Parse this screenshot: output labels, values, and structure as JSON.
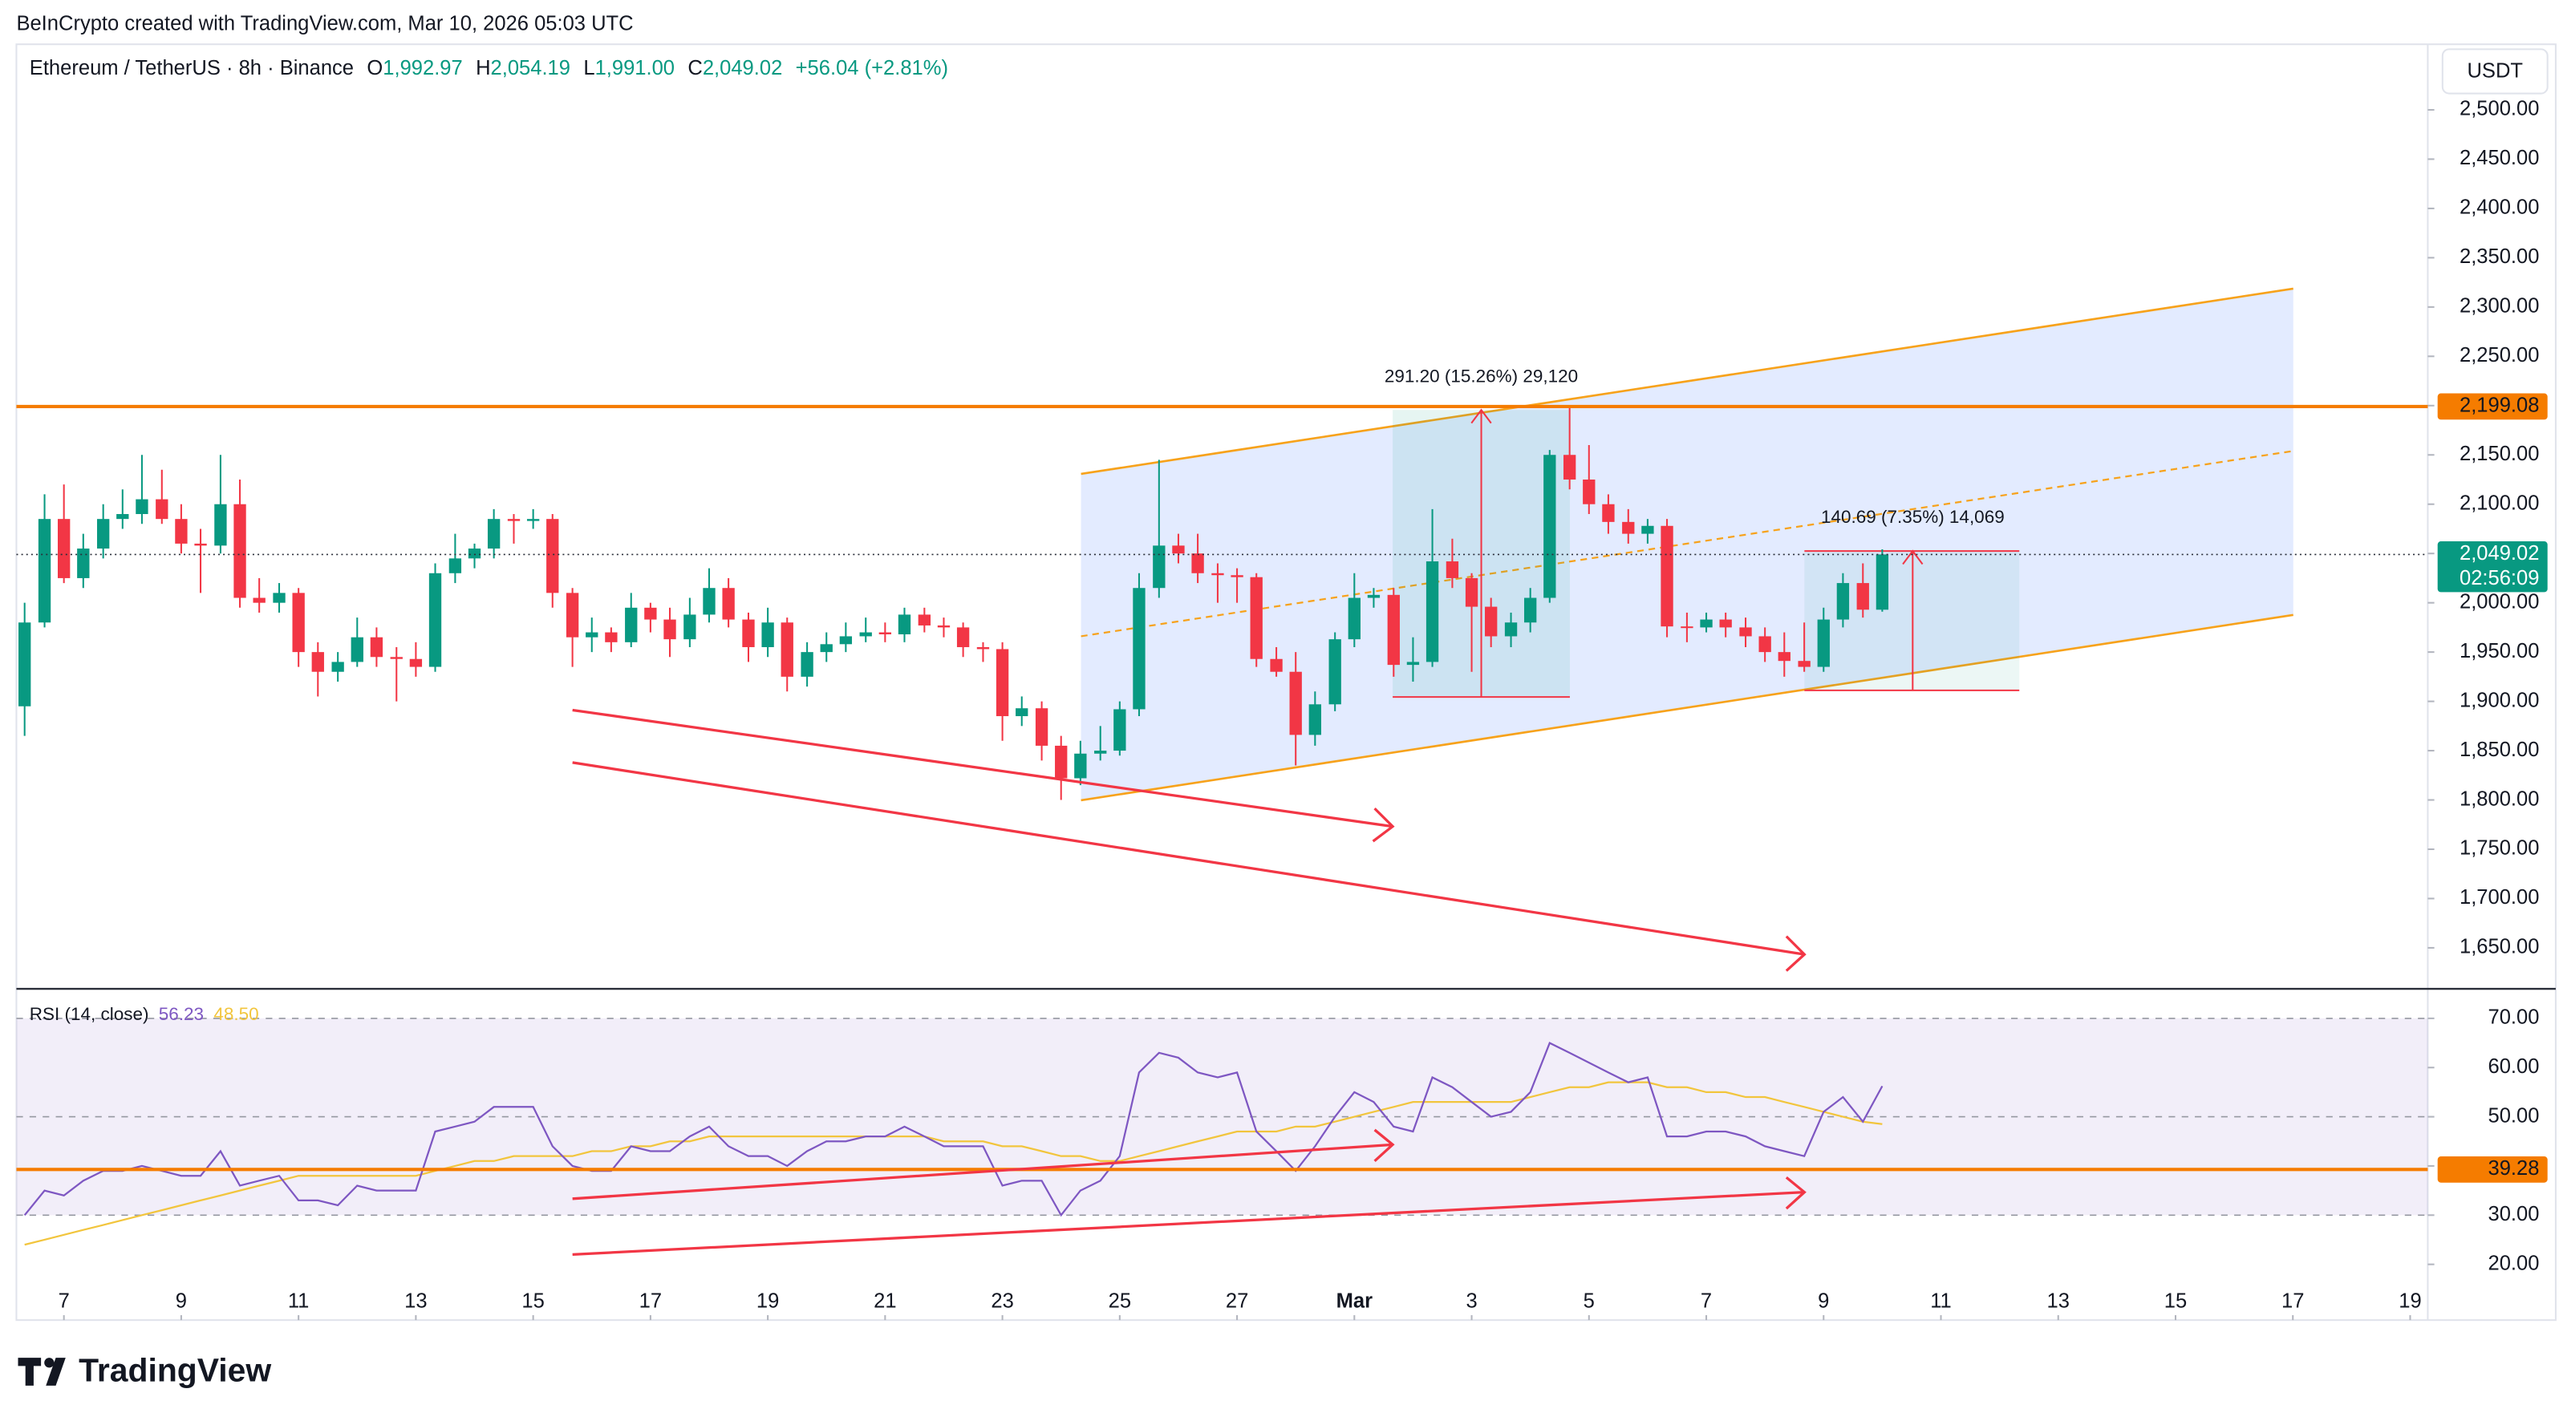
{
  "header": {
    "attribution": "BeInCrypto created with TradingView.com, Mar 10, 2026 05:03 UTC",
    "brand": "TradingView"
  },
  "chart_data": {
    "type": "candlestick",
    "title": "Ethereum / TetherUS · 8h · Binance",
    "ohlc_legend": [
      {
        "key": "O",
        "value": "1,992.97"
      },
      {
        "key": "H",
        "value": "2,054.19"
      },
      {
        "key": "L",
        "value": "1,991.00"
      },
      {
        "key": "C",
        "value": "2,049.02"
      }
    ],
    "change": "+56.04 (+2.81%)",
    "currency": "USDT",
    "up_color": "#089981",
    "down_color": "#f23645",
    "x": [
      6.33,
      6.67,
      7,
      7.33,
      7.67,
      8,
      8.33,
      8.67,
      9,
      9.33,
      9.67,
      10,
      10.33,
      10.67,
      11,
      11.33,
      11.67,
      12,
      12.33,
      12.67,
      13,
      13.33,
      13.67,
      14,
      14.33,
      14.67,
      15,
      15.33,
      15.67,
      16,
      16.33,
      16.67,
      17,
      17.33,
      17.67,
      18,
      18.33,
      18.67,
      19,
      19.33,
      19.67,
      20,
      20.33,
      20.67,
      21,
      21.33,
      21.67,
      22,
      22.33,
      22.67,
      23,
      23.33,
      23.67,
      24,
      24.33,
      24.67,
      25,
      25.33,
      25.67,
      26,
      26.33,
      26.67,
      27,
      27.33,
      27.67,
      28,
      28.33,
      28.67,
      29,
      29.33,
      29.67,
      30,
      30.33,
      30.67,
      31,
      31.33,
      31.67,
      32,
      32.33,
      32.67,
      33,
      33.33,
      33.67,
      34,
      34.33,
      34.67,
      35,
      35.33,
      35.67,
      36,
      36.33,
      36.67,
      37,
      37.33,
      37.67,
      38
    ],
    "candles": [
      [
        1895,
        2000,
        1865,
        1980
      ],
      [
        1980,
        2110,
        1975,
        2085
      ],
      [
        2085,
        2120,
        2020,
        2025
      ],
      [
        2025,
        2070,
        2015,
        2055
      ],
      [
        2055,
        2100,
        2045,
        2085
      ],
      [
        2085,
        2115,
        2075,
        2090
      ],
      [
        2090,
        2150,
        2080,
        2105
      ],
      [
        2105,
        2135,
        2080,
        2085
      ],
      [
        2085,
        2100,
        2050,
        2060
      ],
      [
        2060,
        2075,
        2010,
        2058
      ],
      [
        2058,
        2150,
        2050,
        2100
      ],
      [
        2100,
        2125,
        1995,
        2005
      ],
      [
        2005,
        2025,
        1990,
        2000
      ],
      [
        2000,
        2020,
        1990,
        2010
      ],
      [
        2010,
        2015,
        1935,
        1950
      ],
      [
        1950,
        1960,
        1905,
        1930
      ],
      [
        1930,
        1950,
        1920,
        1940
      ],
      [
        1940,
        1985,
        1935,
        1965
      ],
      [
        1965,
        1975,
        1935,
        1945
      ],
      [
        1945,
        1955,
        1900,
        1943
      ],
      [
        1943,
        1960,
        1925,
        1935
      ],
      [
        1935,
        2040,
        1930,
        2030
      ],
      [
        2030,
        2070,
        2020,
        2045
      ],
      [
        2045,
        2060,
        2035,
        2055
      ],
      [
        2055,
        2095,
        2045,
        2085
      ],
      [
        2085,
        2090,
        2060,
        2083
      ],
      [
        2083,
        2095,
        2075,
        2085
      ],
      [
        2085,
        2090,
        1995,
        2010
      ],
      [
        2010,
        2015,
        1935,
        1965
      ],
      [
        1965,
        1985,
        1950,
        1970
      ],
      [
        1970,
        1975,
        1950,
        1960
      ],
      [
        1960,
        2010,
        1955,
        1995
      ],
      [
        1995,
        2000,
        1970,
        1983
      ],
      [
        1983,
        1995,
        1945,
        1963
      ],
      [
        1963,
        2005,
        1955,
        1988
      ],
      [
        1988,
        2035,
        1980,
        2015
      ],
      [
        2015,
        2025,
        1975,
        1983
      ],
      [
        1983,
        1990,
        1940,
        1955
      ],
      [
        1955,
        1995,
        1945,
        1980
      ],
      [
        1980,
        1985,
        1910,
        1925
      ],
      [
        1925,
        1960,
        1915,
        1950
      ],
      [
        1950,
        1970,
        1940,
        1958
      ],
      [
        1958,
        1980,
        1950,
        1966
      ],
      [
        1966,
        1985,
        1960,
        1970
      ],
      [
        1970,
        1980,
        1960,
        1968
      ],
      [
        1968,
        1995,
        1960,
        1988
      ],
      [
        1988,
        1995,
        1970,
        1977
      ],
      [
        1977,
        1985,
        1965,
        1975
      ],
      [
        1975,
        1980,
        1945,
        1955
      ],
      [
        1955,
        1960,
        1940,
        1953
      ],
      [
        1953,
        1960,
        1860,
        1885
      ],
      [
        1885,
        1905,
        1875,
        1893
      ],
      [
        1893,
        1900,
        1840,
        1855
      ],
      [
        1855,
        1865,
        1800,
        1822
      ],
      [
        1822,
        1860,
        1815,
        1847
      ],
      [
        1847,
        1875,
        1840,
        1850
      ],
      [
        1850,
        1900,
        1845,
        1892
      ],
      [
        1892,
        2030,
        1885,
        2015
      ],
      [
        2015,
        2145,
        2005,
        2058
      ],
      [
        2058,
        2070,
        2040,
        2050
      ],
      [
        2050,
        2070,
        2020,
        2030
      ],
      [
        2030,
        2040,
        2000,
        2028
      ],
      [
        2028,
        2035,
        2000,
        2026
      ],
      [
        2026,
        2030,
        1935,
        1943
      ],
      [
        1943,
        1955,
        1925,
        1930
      ],
      [
        1930,
        1950,
        1835,
        1866
      ],
      [
        1866,
        1910,
        1855,
        1897
      ],
      [
        1897,
        1970,
        1890,
        1963
      ],
      [
        1963,
        2030,
        1955,
        2005
      ],
      [
        2005,
        2015,
        1995,
        2008
      ],
      [
        2008,
        2015,
        1925,
        1937
      ],
      [
        1937,
        1965,
        1920,
        1940
      ],
      [
        1940,
        2095,
        1935,
        2042
      ],
      [
        2042,
        2065,
        2015,
        2025
      ],
      [
        2025,
        2030,
        1930,
        1996
      ],
      [
        1996,
        2005,
        1955,
        1966
      ],
      [
        1966,
        1990,
        1955,
        1980
      ],
      [
        1980,
        2015,
        1970,
        2005
      ],
      [
        2005,
        2155,
        2000,
        2150
      ],
      [
        2150,
        2199,
        2115,
        2125
      ],
      [
        2125,
        2160,
        2090,
        2100
      ],
      [
        2100,
        2110,
        2070,
        2082
      ],
      [
        2082,
        2095,
        2060,
        2070
      ],
      [
        2070,
        2085,
        2060,
        2078
      ],
      [
        2078,
        2085,
        1965,
        1976
      ],
      [
        1976,
        1990,
        1960,
        1975
      ],
      [
        1975,
        1990,
        1970,
        1983
      ],
      [
        1983,
        1990,
        1965,
        1975
      ],
      [
        1975,
        1985,
        1955,
        1966
      ],
      [
        1966,
        1975,
        1940,
        1950
      ],
      [
        1950,
        1970,
        1925,
        1941
      ],
      [
        1941,
        1980,
        1930,
        1935
      ],
      [
        1935,
        1995,
        1930,
        1983
      ],
      [
        1983,
        2030,
        1975,
        2020
      ],
      [
        2020,
        2040,
        1985,
        1993
      ],
      [
        1992.97,
        2054.19,
        1991,
        2049.02
      ]
    ],
    "xlim": [
      6.19,
      47.3
    ],
    "xticks": [
      7,
      9,
      11,
      13,
      15,
      17,
      19,
      21,
      23,
      25,
      27,
      {
        "value": 29,
        "label": "Mar"
      },
      {
        "value": 31,
        "label": "3"
      },
      {
        "value": 33,
        "label": "5"
      },
      {
        "value": 35,
        "label": "7"
      },
      {
        "value": 37,
        "label": "9"
      },
      {
        "value": 39,
        "label": "11"
      },
      {
        "value": 41,
        "label": "13"
      },
      {
        "value": 43,
        "label": "15"
      },
      {
        "value": 45,
        "label": "17"
      },
      {
        "value": 47,
        "label": "19"
      }
    ],
    "ylim": [
      1608.4,
      2566.5
    ],
    "yticks": [
      {
        "value": 1650,
        "label": "1,650.00"
      },
      {
        "value": 1700,
        "label": "1,700.00"
      },
      {
        "value": 1750,
        "label": "1,750.00"
      },
      {
        "value": 1800,
        "label": "1,800.00"
      },
      {
        "value": 1850,
        "label": "1,850.00"
      },
      {
        "value": 1900,
        "label": "1,900.00"
      },
      {
        "value": 1950,
        "label": "1,950.00"
      },
      {
        "value": 2000,
        "label": "2,000.00"
      },
      {
        "value": 2050,
        "label": "2,050.00"
      },
      {
        "value": 2100,
        "label": "2,100.00"
      },
      {
        "value": 2150,
        "label": "2,150.00"
      },
      {
        "value": 2200,
        "label": "2,200.00"
      },
      {
        "value": 2250,
        "label": "2,250.00"
      },
      {
        "value": 2300,
        "label": "2,300.00"
      },
      {
        "value": 2350,
        "label": "2,350.00"
      },
      {
        "value": 2400,
        "label": "2,400.00"
      },
      {
        "value": 2450,
        "label": "2,450.00"
      },
      {
        "value": 2500,
        "label": "2,500.00"
      }
    ],
    "last_price_label": "2,049.02",
    "countdown": "02:56:09",
    "hline": {
      "value": 2199.08,
      "label": "2,199.08",
      "color": "#f57c00"
    },
    "measures": [
      {
        "label": "291.20 (15.26%) 29,120"
      },
      {
        "label": "140.69 (7.35%) 14,069"
      }
    ],
    "rsi": {
      "title": "RSI (14, close)",
      "color": "#7e57c2",
      "value_label": "56.23",
      "values": [
        30,
        35,
        34,
        37,
        39,
        39,
        40,
        39,
        38,
        38,
        43,
        36,
        37,
        38,
        33,
        33,
        32,
        36,
        35,
        35,
        35,
        47,
        48,
        49,
        52,
        52,
        52,
        44,
        40,
        39,
        39,
        44,
        43,
        43,
        46,
        48,
        44,
        42,
        42,
        40,
        43,
        45,
        45,
        46,
        46,
        48,
        46,
        44,
        44,
        44,
        36,
        37,
        37,
        30,
        35,
        37,
        42,
        59,
        63,
        62,
        59,
        58,
        59,
        47,
        43,
        39,
        44,
        50,
        55,
        53,
        48,
        47,
        58,
        56,
        53,
        50,
        51,
        55,
        65,
        63,
        61,
        59,
        57,
        58,
        46,
        46,
        47,
        47,
        46,
        44,
        43,
        42,
        51,
        54,
        49,
        56.23
      ],
      "ma": {
        "color": "#f2c53d",
        "value_label": "48.50",
        "values": [
          24,
          25,
          26,
          27,
          28,
          29,
          30,
          31,
          32,
          33,
          34,
          35,
          36,
          37,
          38,
          38,
          38,
          38,
          38,
          38,
          38,
          39,
          40,
          41,
          41,
          42,
          42,
          42,
          42,
          43,
          43,
          44,
          44,
          45,
          45,
          46,
          46,
          46,
          46,
          46,
          46,
          46,
          46,
          46,
          46,
          46,
          46,
          45,
          45,
          45,
          44,
          44,
          43,
          42,
          42,
          41,
          41,
          42,
          43,
          44,
          45,
          46,
          47,
          47,
          47,
          48,
          48,
          49,
          50,
          51,
          52,
          53,
          53,
          53,
          53,
          53,
          53,
          54,
          55,
          56,
          56,
          57,
          57,
          57,
          56,
          56,
          55,
          55,
          54,
          54,
          53,
          52,
          51,
          50,
          49,
          48.5
        ]
      },
      "ylim": [
        8.67,
        76
      ],
      "yticks": [
        {
          "value": 20,
          "label": "20.00"
        },
        {
          "value": 30,
          "label": "30.00"
        },
        {
          "value": 40,
          "label": "40.00"
        },
        {
          "value": 50,
          "label": "50.00"
        },
        {
          "value": 60,
          "label": "60.00"
        },
        {
          "value": 70,
          "label": "70.00"
        }
      ],
      "dashed_levels": [
        70,
        50,
        30
      ],
      "hline": {
        "value": 39.28,
        "label": "39.28",
        "color": "#f57c00"
      }
    }
  }
}
